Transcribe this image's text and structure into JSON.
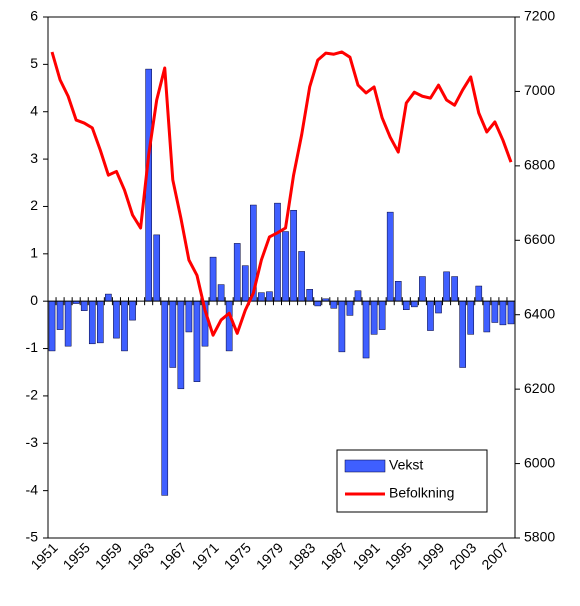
{
  "chart_data": {
    "type": "bar",
    "categories": [
      "1951",
      null,
      null,
      null,
      "1955",
      null,
      null,
      null,
      "1959",
      null,
      null,
      null,
      "1963",
      null,
      null,
      null,
      "1967",
      null,
      null,
      null,
      "1971",
      null,
      null,
      null,
      "1975",
      null,
      null,
      null,
      "1979",
      null,
      null,
      null,
      "1983",
      null,
      null,
      null,
      "1987",
      null,
      null,
      null,
      "1991",
      null,
      null,
      null,
      "1995",
      null,
      null,
      null,
      "1999",
      null,
      null,
      null,
      "2003",
      null,
      null,
      null,
      "2007",
      null
    ],
    "series": [
      {
        "name": "Vekst",
        "type": "bar",
        "color": "#3f5fff",
        "values": [
          -1.05,
          -0.6,
          -0.95,
          -0.05,
          -0.2,
          -0.9,
          -0.88,
          0.15,
          -0.78,
          -1.05,
          -0.4,
          0,
          4.9,
          1.4,
          -4.1,
          -1.4,
          -1.85,
          -0.65,
          -1.7,
          -0.95,
          0.93,
          0.35,
          -1.05,
          1.22,
          0.75,
          2.03,
          0.18,
          0.2,
          2.07,
          1.47,
          1.92,
          1.05,
          0.25,
          -0.1,
          0.05,
          -0.15,
          -1.07,
          -0.3,
          0.22,
          -1.2,
          -0.7,
          -0.6,
          1.88,
          0.42,
          -0.18,
          -0.12,
          0.52,
          -0.62,
          -0.25,
          0.62,
          0.52,
          -1.4,
          -0.7,
          0.32,
          -0.65,
          -0.45,
          -0.5,
          -0.48
        ]
      },
      {
        "name": "Befolkning",
        "type": "line",
        "axis": "y2",
        "color": "#ff0000",
        "values": [
          7106,
          7031,
          6987,
          6923,
          6915,
          6902,
          6842,
          6775,
          6785,
          6735,
          6668,
          6633,
          6829,
          6977,
          7063,
          6762,
          6660,
          6547,
          6506,
          6412,
          6345,
          6386,
          6404,
          6350,
          6412,
          6458,
          6547,
          6609,
          6620,
          6633,
          6775,
          6883,
          7012,
          7084,
          7103,
          7100,
          7106,
          7092,
          7017,
          6996,
          7012,
          6929,
          6877,
          6837,
          6969,
          6998,
          6987,
          6982,
          7017,
          6977,
          6963,
          7004,
          7039,
          6942,
          6891,
          6918,
          6869,
          6810
        ]
      }
    ],
    "ylim": [
      -5,
      6
    ],
    "yticks": [
      -5,
      -4,
      -3,
      -2,
      -1,
      0,
      1,
      2,
      3,
      4,
      5,
      6
    ],
    "y2lim": [
      5800,
      7200
    ],
    "y2ticks": [
      5800,
      6000,
      6200,
      6400,
      6600,
      6800,
      7000,
      7200
    ],
    "legend": "lower right"
  }
}
